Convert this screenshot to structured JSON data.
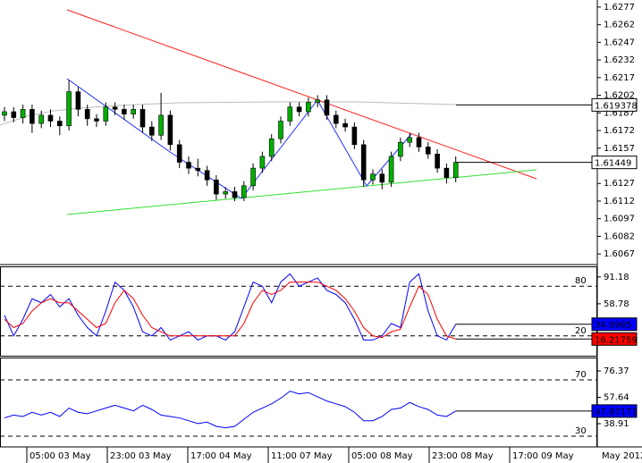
{
  "chart_data": [
    {
      "type": "candlestick",
      "ohlc": [
        [
          1.6185,
          1.6192,
          1.618,
          1.6188
        ],
        [
          1.6188,
          1.6192,
          1.6179,
          1.6183
        ],
        [
          1.6183,
          1.6194,
          1.6178,
          1.619
        ],
        [
          1.619,
          1.6194,
          1.617,
          1.6178
        ],
        [
          1.6178,
          1.6189,
          1.6174,
          1.6185
        ],
        [
          1.6185,
          1.619,
          1.6175,
          1.618
        ],
        [
          1.618,
          1.6184,
          1.6168,
          1.6176
        ],
        [
          1.6176,
          1.6215,
          1.6172,
          1.6205
        ],
        [
          1.6205,
          1.6209,
          1.6184,
          1.619
        ],
        [
          1.619,
          1.6194,
          1.6176,
          1.6182
        ],
        [
          1.6182,
          1.6186,
          1.6175,
          1.618
        ],
        [
          1.618,
          1.6196,
          1.6176,
          1.6192
        ],
        [
          1.6192,
          1.6196,
          1.6185,
          1.619
        ],
        [
          1.619,
          1.6194,
          1.6181,
          1.6186
        ],
        [
          1.6186,
          1.6194,
          1.6182,
          1.619
        ],
        [
          1.619,
          1.6194,
          1.617,
          1.6175
        ],
        [
          1.6175,
          1.618,
          1.6163,
          1.6168
        ],
        [
          1.6168,
          1.6204,
          1.6164,
          1.6185
        ],
        [
          1.6185,
          1.6189,
          1.6155,
          1.616
        ],
        [
          1.616,
          1.6164,
          1.614,
          1.6145
        ],
        [
          1.6145,
          1.615,
          1.6135,
          1.614
        ],
        [
          1.614,
          1.6148,
          1.6133,
          1.6138
        ],
        [
          1.6138,
          1.6142,
          1.6125,
          1.613
        ],
        [
          1.613,
          1.6134,
          1.6113,
          1.6118
        ],
        [
          1.6118,
          1.6124,
          1.6114,
          1.612
        ],
        [
          1.612,
          1.6124,
          1.6112,
          1.6115
        ],
        [
          1.6115,
          1.6129,
          1.6112,
          1.6125
        ],
        [
          1.6125,
          1.6144,
          1.6121,
          1.614
        ],
        [
          1.614,
          1.6154,
          1.6136,
          1.615
        ],
        [
          1.615,
          1.6169,
          1.6146,
          1.6165
        ],
        [
          1.6165,
          1.6184,
          1.6161,
          1.618
        ],
        [
          1.618,
          1.6196,
          1.6176,
          1.6192
        ],
        [
          1.6192,
          1.6196,
          1.6184,
          1.6188
        ],
        [
          1.6188,
          1.62,
          1.6184,
          1.6196
        ],
        [
          1.6196,
          1.6202,
          1.6192,
          1.6198
        ],
        [
          1.6198,
          1.6202,
          1.6181,
          1.6185
        ],
        [
          1.6185,
          1.6189,
          1.6174,
          1.6178
        ],
        [
          1.6178,
          1.6182,
          1.6171,
          1.6175
        ],
        [
          1.6175,
          1.6179,
          1.6156,
          1.616
        ],
        [
          1.616,
          1.6164,
          1.6124,
          1.613
        ],
        [
          1.613,
          1.6139,
          1.6126,
          1.6135
        ],
        [
          1.6135,
          1.6139,
          1.6122,
          1.6128
        ],
        [
          1.6128,
          1.6154,
          1.6124,
          1.615
        ],
        [
          1.615,
          1.6166,
          1.6146,
          1.6162
        ],
        [
          1.6162,
          1.617,
          1.6158,
          1.6166
        ],
        [
          1.6166,
          1.617,
          1.6154,
          1.6158
        ],
        [
          1.6158,
          1.6162,
          1.6148,
          1.6152
        ],
        [
          1.6152,
          1.6156,
          1.6136,
          1.614
        ],
        [
          1.614,
          1.6144,
          1.6127,
          1.6132
        ],
        [
          1.6132,
          1.615,
          1.6128,
          1.61449
        ]
      ],
      "up_color": "#00b000",
      "down_color": "#000000",
      "ylim": [
        1.6058,
        1.6283
      ],
      "yticks": [
        1.6277,
        1.6262,
        1.6247,
        1.6232,
        1.6217,
        1.6202,
        1.6187,
        1.6172,
        1.6157,
        1.6127,
        1.6112,
        1.6097,
        1.6082,
        1.6067
      ],
      "ma_value": 1.619378
    },
    {
      "type": "line",
      "series": [
        {
          "color": "#0000ff",
          "values": [
            45,
            20,
            40,
            65,
            60,
            70,
            55,
            65,
            45,
            30,
            20,
            50,
            85,
            75,
            55,
            25,
            20,
            30,
            15,
            20,
            25,
            15,
            20,
            20,
            15,
            25,
            55,
            85,
            80,
            60,
            85,
            95,
            80,
            85,
            90,
            75,
            70,
            60,
            40,
            15,
            15,
            20,
            35,
            30,
            85,
            95,
            50,
            20,
            15,
            34.0985
          ]
        },
        {
          "color": "#ff0000",
          "values": [
            40,
            30,
            35,
            50,
            60,
            65,
            60,
            60,
            50,
            40,
            30,
            35,
            60,
            75,
            65,
            45,
            30,
            25,
            20,
            20,
            20,
            20,
            20,
            20,
            20,
            20,
            35,
            60,
            75,
            70,
            75,
            85,
            85,
            85,
            85,
            80,
            75,
            65,
            50,
            30,
            20,
            18,
            25,
            28,
            55,
            80,
            70,
            40,
            20,
            16.21759
          ]
        }
      ],
      "ylim": [
        -4,
        104
      ],
      "yticks": [
        91.18,
        58.78
      ],
      "levels": [
        80,
        20
      ]
    },
    {
      "type": "line",
      "series": [
        {
          "color": "#0000ff",
          "values": [
            43,
            45,
            44,
            47,
            45,
            47,
            44,
            50,
            47,
            46,
            48,
            50,
            52,
            50,
            48,
            52,
            49,
            45,
            44,
            43,
            41,
            39,
            40,
            37,
            36,
            37,
            42,
            47,
            50,
            53,
            57,
            62,
            60,
            61,
            58,
            55,
            53,
            51,
            47,
            41,
            41,
            44,
            49,
            50,
            54,
            51,
            49,
            45,
            44,
            47.87171
          ]
        }
      ],
      "ylim": [
        22.4,
        85.9
      ],
      "yticks": [
        76.37,
        57.64,
        38.91
      ],
      "levels": [
        70,
        30
      ]
    }
  ],
  "time_axis": {
    "ticks": [
      "05:00 03 May",
      "23:00 03 May",
      "17:00 04 May",
      "11:00 07 May",
      "05:00 08 May",
      "23:00 08 May",
      "17:00 09 May"
    ],
    "period": "May 2012"
  }
}
